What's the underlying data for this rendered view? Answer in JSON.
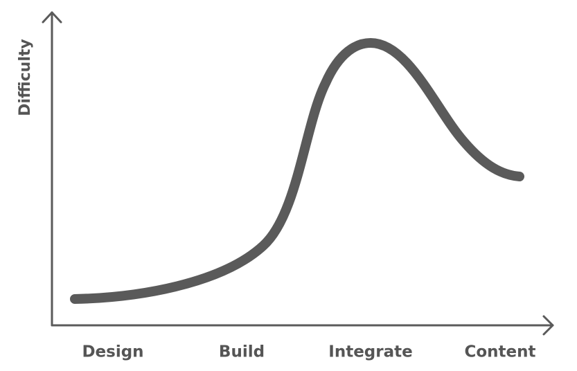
{
  "axes": {
    "y_label": "Difficulty"
  },
  "stages": [
    "Design",
    "Build",
    "Integrate",
    "Content"
  ]
}
